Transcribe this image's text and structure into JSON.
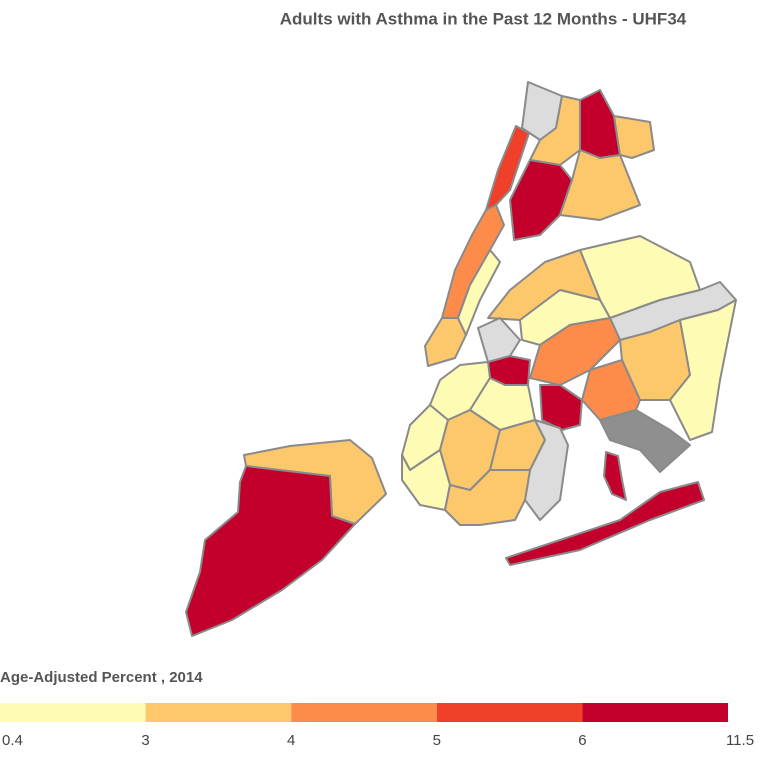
{
  "title": "Adults with Asthma in the Past 12 Months - UHF34",
  "legend": {
    "title": "Age-Adjusted Percent , 2014",
    "breaks": [
      0.4,
      3,
      4,
      5,
      6,
      11.5
    ],
    "colors": [
      "#fefbb5",
      "#fdc76b",
      "#fd8c4a",
      "#f0402a",
      "#c2002b"
    ]
  }
}
